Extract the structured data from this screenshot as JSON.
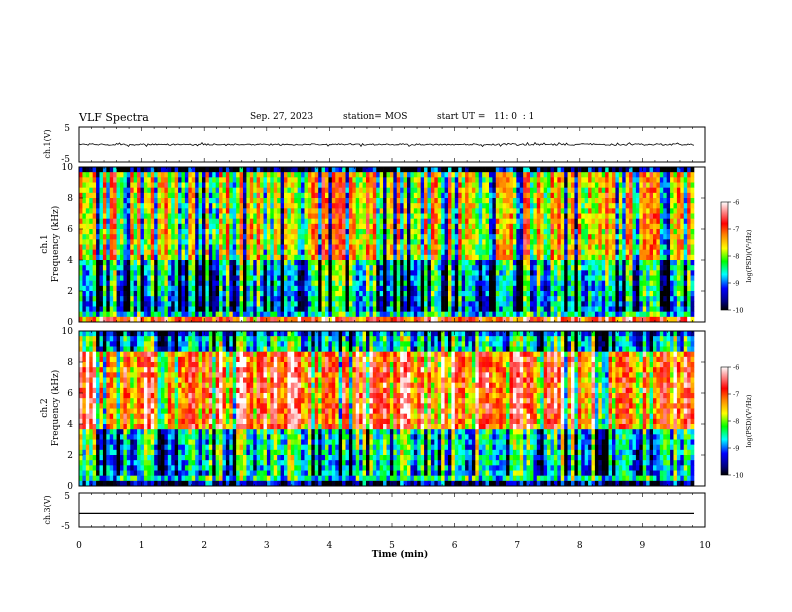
{
  "header": {
    "title": "VLF Spectra",
    "date": "Sep. 27, 2023",
    "station": "station= MOS",
    "start_ut": "start UT =   11: 0  : 1"
  },
  "chart_data": {
    "type": "heatmap",
    "x_axis": {
      "label": "Time  (min)",
      "range": [
        0,
        10
      ],
      "ticks": [
        "0",
        "1",
        "2",
        "3",
        "4",
        "5",
        "6",
        "7",
        "8",
        "9",
        "10"
      ]
    },
    "panels": [
      {
        "id": "ch1-waveform",
        "type": "line",
        "ylabel": "ch.1(V)",
        "ylim": [
          -5,
          5
        ],
        "yticks": [
          "5",
          "-5"
        ],
        "trace_level": 0
      },
      {
        "id": "ch1-spectrogram",
        "type": "heatmap",
        "ylabel_line1": "ch.1",
        "ylabel_line2": "Frequency (kHz)",
        "ylim": [
          0,
          10
        ],
        "yticks": [
          "0",
          "2",
          "4",
          "6",
          "8",
          "10"
        ],
        "colorbar": {
          "label": "log(PSD)(V²/Hz)",
          "range": [
            -10,
            -6
          ],
          "ticks": [
            "-6",
            "-7",
            "-8",
            "-9",
            "-10"
          ]
        },
        "intensity_profile": "strong band 4–9.5 kHz, weaker 0.5–4 kHz, saturated near 0.3 kHz line"
      },
      {
        "id": "ch2-spectrogram",
        "type": "heatmap",
        "ylabel_line1": "ch.2",
        "ylabel_line2": "Frequency (kHz)",
        "ylim": [
          0,
          10
        ],
        "yticks": [
          "0",
          "2",
          "4",
          "6",
          "8",
          "10"
        ],
        "colorbar": {
          "label": "log(PSD)(V²/Hz)",
          "range": [
            -10,
            -6
          ],
          "ticks": [
            "-6",
            "-7",
            "-8",
            "-9",
            "-10"
          ]
        },
        "intensity_profile": "strongest band 3.5–8.5 kHz (near saturation), moderate 0.5–3.5 kHz and 8.5–10 kHz"
      },
      {
        "id": "ch3-waveform",
        "type": "line",
        "ylabel": "ch.3(V)",
        "ylim": [
          -5,
          5
        ],
        "yticks": [
          "5",
          "-5"
        ],
        "trace_level": -1
      }
    ]
  }
}
